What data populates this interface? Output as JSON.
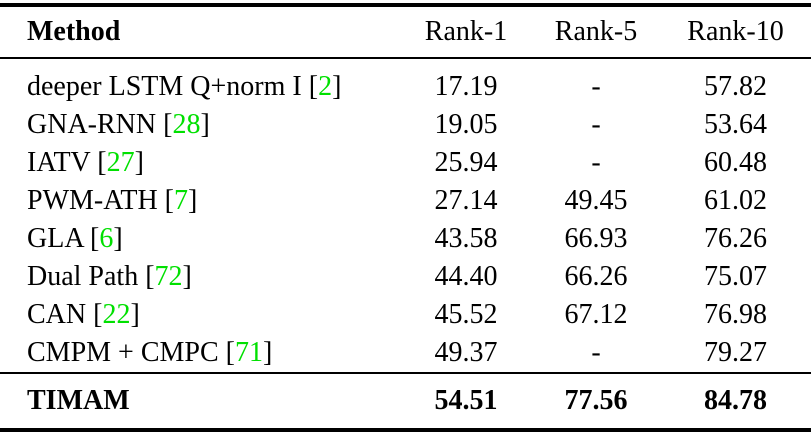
{
  "table": {
    "columns": {
      "method": "Method",
      "rank1": "Rank-1",
      "rank5": "Rank-5",
      "rank10": "Rank-10"
    },
    "bracket_open": "[",
    "bracket_close": "]",
    "citation_color": "#00e000",
    "rule_color": "#000000",
    "rows": [
      {
        "method": "deeper LSTM Q+norm I",
        "cite": "2",
        "rank1": "17.19",
        "rank5": "-",
        "rank10": "57.82"
      },
      {
        "method": "GNA-RNN",
        "cite": "28",
        "rank1": "19.05",
        "rank5": "-",
        "rank10": "53.64"
      },
      {
        "method": "IATV",
        "cite": "27",
        "rank1": "25.94",
        "rank5": "-",
        "rank10": "60.48"
      },
      {
        "method": "PWM-ATH",
        "cite": "7",
        "rank1": "27.14",
        "rank5": "49.45",
        "rank10": "61.02"
      },
      {
        "method": "GLA",
        "cite": "6",
        "rank1": "43.58",
        "rank5": "66.93",
        "rank10": "76.26"
      },
      {
        "method": "Dual Path",
        "cite": "72",
        "rank1": "44.40",
        "rank5": "66.26",
        "rank10": "75.07"
      },
      {
        "method": "CAN",
        "cite": "22",
        "rank1": "45.52",
        "rank5": "67.12",
        "rank10": "76.98"
      },
      {
        "method": "CMPM + CMPC",
        "cite": "71",
        "rank1": "49.37",
        "rank5": "-",
        "rank10": "79.27"
      }
    ],
    "footer": {
      "method": "TIMAM",
      "rank1": "54.51",
      "rank5": "77.56",
      "rank10": "84.78"
    }
  }
}
